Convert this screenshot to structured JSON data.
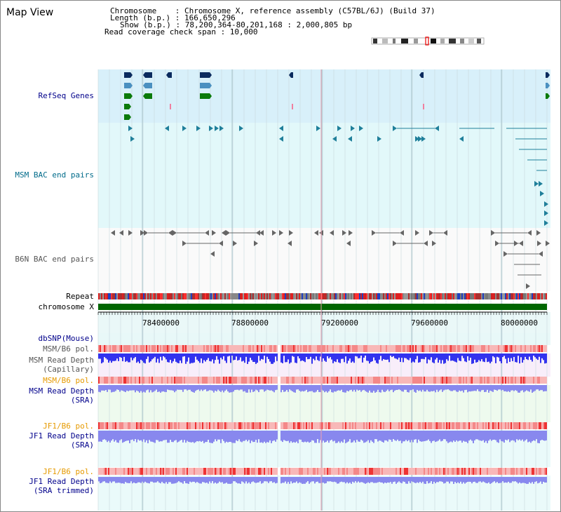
{
  "page": {
    "title": "Map View"
  },
  "header": {
    "lines": [
      "Chromosome    : Chromosome X, reference assembly (C57BL/6J) (Build 37)",
      "Length (b.p.) : 166,650,296",
      "Show (b.p.) : 78,200,364-80,201,168 : 2,000,805 bp",
      "Read coverage check span : 10,000"
    ]
  },
  "tracks": {
    "refseq": "RefSeq Genes",
    "msm_bac": "MSM BAC end pairs",
    "b6n_bac": "B6N BAC end pairs",
    "repeat": "Repeat",
    "chromosome": "chromosome X",
    "dbsnp": "dbSNP(Mouse)",
    "msm_pol_1": "MSM/B6 pol.",
    "msm_depth_cap_1": "MSM Read Depth",
    "msm_depth_cap_2": "(Capillary)",
    "msm_pol_2": "MSM/B6 pol.",
    "msm_depth_sra_1": "MSM Read Depth",
    "msm_depth_sra_2": "(SRA)",
    "jf1_pol_1": "JF1/B6 pol.",
    "jf1_depth_sra_1": "JF1 Read Depth",
    "jf1_depth_sra_2": "(SRA)",
    "jf1_pol_2": "JF1/B6 pol.",
    "jf1_depth_trim_1": "JF1 Read Depth",
    "jf1_depth_trim_2": "(SRA trimmed)"
  },
  "axis": {
    "start": 78200364,
    "end": 80201168,
    "ticks": [
      "78400000",
      "78800000",
      "79200000",
      "79600000",
      "80000000"
    ]
  },
  "colors": {
    "refseq_bg": "#d8f0fa",
    "bac_bg": "#e2f8fa",
    "gene_dark": "#0a2a5e",
    "gene_mid": "#4a90c0",
    "gene_green": "#0a7a0a",
    "chrom_green": "#006600",
    "depth_blue": "#3333ee",
    "depth_light": "#8888ee",
    "pol_red": "#ee3333",
    "pol_pink": "#f8b8b8"
  }
}
